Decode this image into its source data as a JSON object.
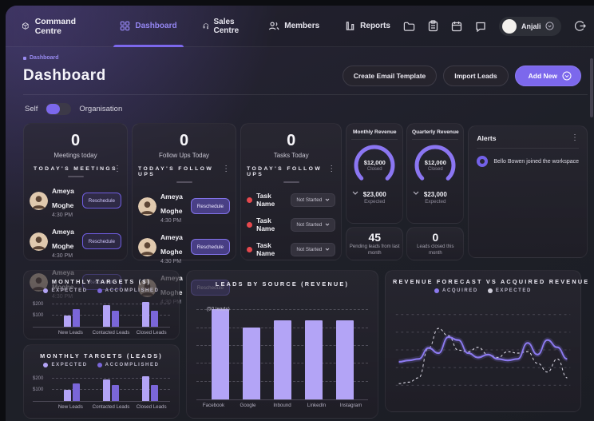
{
  "nav": {
    "brand": "Command Centre",
    "items": [
      {
        "label": "Dashboard",
        "active": true
      },
      {
        "label": "Sales Centre",
        "active": false
      },
      {
        "label": "Members",
        "active": false
      },
      {
        "label": "Reports",
        "active": false
      }
    ],
    "user": {
      "name": "Anjali"
    }
  },
  "header": {
    "breadcrumb": "Dashboard",
    "title": "Dashboard",
    "actions": {
      "email": "Create Email Template",
      "import": "Import Leads",
      "add": "Add New"
    },
    "toggle": {
      "left": "Self",
      "right": "Organisation"
    }
  },
  "cards": {
    "meetings": {
      "count": "0",
      "label": "Meetings today",
      "section": "TODAY'S MEETINGS",
      "items": [
        {
          "name": "Ameya Moghe",
          "time": "4:30 PM",
          "action": "Reschedule"
        },
        {
          "name": "Ameya Moghe",
          "time": "4:30 PM",
          "action": "Reschedule"
        },
        {
          "name": "Ameya Moghe",
          "time": "4:30 PM",
          "action": "Reschedule"
        }
      ]
    },
    "followups": {
      "count": "0",
      "label": "Follow Ups Today",
      "section": "TODAY'S FOLLOW UPS",
      "items": [
        {
          "name": "Ameya Moghe",
          "time": "4:30 PM",
          "action": "Reschedule"
        },
        {
          "name": "Ameya Moghe",
          "time": "4:30 PM",
          "action": "Reschedule"
        },
        {
          "name": "Ameya Moghe",
          "time": "4:30 PM",
          "action": "Reschedule"
        }
      ]
    },
    "tasks": {
      "count": "0",
      "label": "Tasks Today",
      "section": "TODAY'S FOLLOW UPS",
      "items": [
        {
          "name": "Task Name",
          "status": "Not Started"
        },
        {
          "name": "Task Name",
          "status": "Not Started"
        },
        {
          "name": "Task Name",
          "status": "Not Started"
        }
      ]
    },
    "gauges": [
      {
        "title": "Monthly Revenue",
        "value": "$12,000",
        "value_label": "Closed",
        "expected": "$23,000",
        "expected_label": "Expected"
      },
      {
        "title": "Quarterly Revenue",
        "value": "$12,000",
        "value_label": "Closed",
        "expected": "$23,000",
        "expected_label": "Expected"
      }
    ],
    "minis": [
      {
        "value": "45",
        "label": "Pending leads from last month"
      },
      {
        "value": "0",
        "label": "Leads closed this month"
      }
    ],
    "alerts": {
      "title": "Alerts",
      "items": [
        {
          "text": "Bello Bowen joined the workspace"
        }
      ]
    }
  },
  "theme": {
    "accent": "#7c68ec",
    "bar_light": "#b3a4f6",
    "bar_dark": "#7a66d9",
    "danger": "#e5484d"
  },
  "chart_data": [
    {
      "type": "bar",
      "title": "MONTHLY TARGETS ($)",
      "categories": [
        "New Leads",
        "Contacted Leads",
        "Closed Leads"
      ],
      "series": [
        {
          "name": "EXPECTED",
          "color": "#b3a4f6",
          "values": [
            100,
            190,
            225
          ]
        },
        {
          "name": "ACCOMPLISHED",
          "color": "#7a66d9",
          "values": [
            155,
            140,
            140
          ]
        }
      ],
      "yticks": [
        {
          "label": "$200",
          "value": 200
        },
        {
          "label": "$100",
          "value": 100
        }
      ],
      "ylim": [
        0,
        250
      ],
      "legend_position": "top",
      "grid": true
    },
    {
      "type": "bar",
      "title": "MONTHLY TARGETS (LEADS)",
      "categories": [
        "New Leads",
        "Contacted Leads",
        "Closed Leads"
      ],
      "series": [
        {
          "name": "EXPECTED",
          "color": "#b3a4f6",
          "values": [
            100,
            190,
            220
          ]
        },
        {
          "name": "ACCOMPLISHED",
          "color": "#7a66d9",
          "values": [
            160,
            140,
            145
          ]
        }
      ],
      "yticks": [
        {
          "label": "$200",
          "value": 200
        },
        {
          "label": "$100",
          "value": 100
        }
      ],
      "ylim": [
        0,
        250
      ],
      "legend_position": "top",
      "grid": true
    },
    {
      "type": "bar",
      "title": "LEADS BY SOURCE (REVENUE)",
      "categories": [
        "Facebook",
        "Google",
        "Inbound",
        "LinkedIn",
        "Instagram"
      ],
      "series": [
        {
          "name": "Leads",
          "color": "#b3a4f6",
          "values": [
            50,
            40,
            44,
            44,
            44
          ]
        }
      ],
      "annotation": {
        "text": "(50 leads)",
        "value": 50,
        "index": 0
      },
      "ylim": [
        0,
        55
      ],
      "legend_position": "none",
      "grid": true
    },
    {
      "type": "line",
      "title": "REVENUE FORECAST VS ACQUIRED REVENUE",
      "series": [
        {
          "name": "ACQUIRED",
          "color": "#8b79ee",
          "style": "solid",
          "values": [
            36,
            38,
            40,
            55,
            48,
            70,
            66,
            48,
            42,
            46,
            40,
            38,
            40,
            62,
            46,
            66,
            56,
            40
          ]
        },
        {
          "name": "EXPECTED",
          "color": "#cfcdd9",
          "style": "dashed",
          "values": [
            6,
            8,
            14,
            55,
            82,
            72,
            52,
            50,
            56,
            46,
            42,
            50,
            48,
            50,
            34,
            22,
            40,
            14
          ]
        }
      ],
      "ylim": [
        0,
        100
      ],
      "legend_position": "top",
      "grid": true
    }
  ]
}
